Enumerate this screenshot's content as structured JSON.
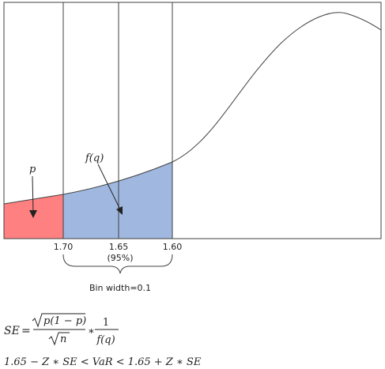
{
  "labels": {
    "p_label": "p",
    "fq_label": "f(q)",
    "bin_width_label": "Bin width=0.1"
  },
  "ticks": {
    "t1": "1.70",
    "t2": "1.65",
    "t2_sub": "(95%)",
    "t3": "1.60"
  },
  "formula_se": {
    "lhs": "SE",
    "equals": "=",
    "sqrt_inner": "p(1 − p)",
    "sqrt_den": "n",
    "times": "∗",
    "frac2_num": "1",
    "frac2_den": "f(q)"
  },
  "formula_ci": {
    "text": "1.65 − Z ∗ SE < VaR < 1.65 + Z ∗ SE"
  },
  "colors": {
    "red_region": "#ff8080",
    "blue_region": "#a0b8e0",
    "curve": "#404040",
    "frame": "#404040"
  }
}
